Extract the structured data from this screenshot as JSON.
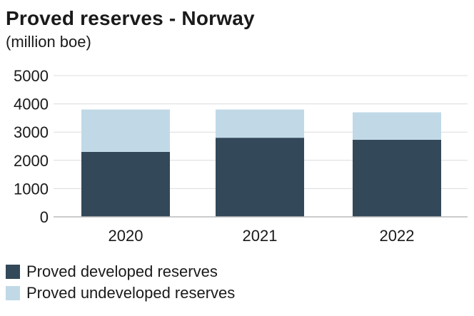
{
  "chart_data": {
    "type": "bar",
    "stacked": true,
    "title": "Proved reserves - Norway",
    "subtitle": "(million boe)",
    "categories": [
      "2020",
      "2021",
      "2022"
    ],
    "series": [
      {
        "name": "Proved developed reserves",
        "values": [
          2300,
          2800,
          2730
        ],
        "color": "#33495a"
      },
      {
        "name": "Proved undeveloped reserves",
        "values": [
          1500,
          1000,
          970
        ],
        "color": "#c1d9e7"
      }
    ],
    "ylim": [
      0,
      5000
    ],
    "yticks": [
      "0",
      "1000",
      "2000",
      "3000",
      "4000",
      "5000"
    ],
    "grid": true,
    "legend_position": "bottom-left",
    "colors": {
      "grid": "#dcdcdc",
      "axis": "#bbbbbb",
      "text": "#1a1a1a"
    }
  }
}
